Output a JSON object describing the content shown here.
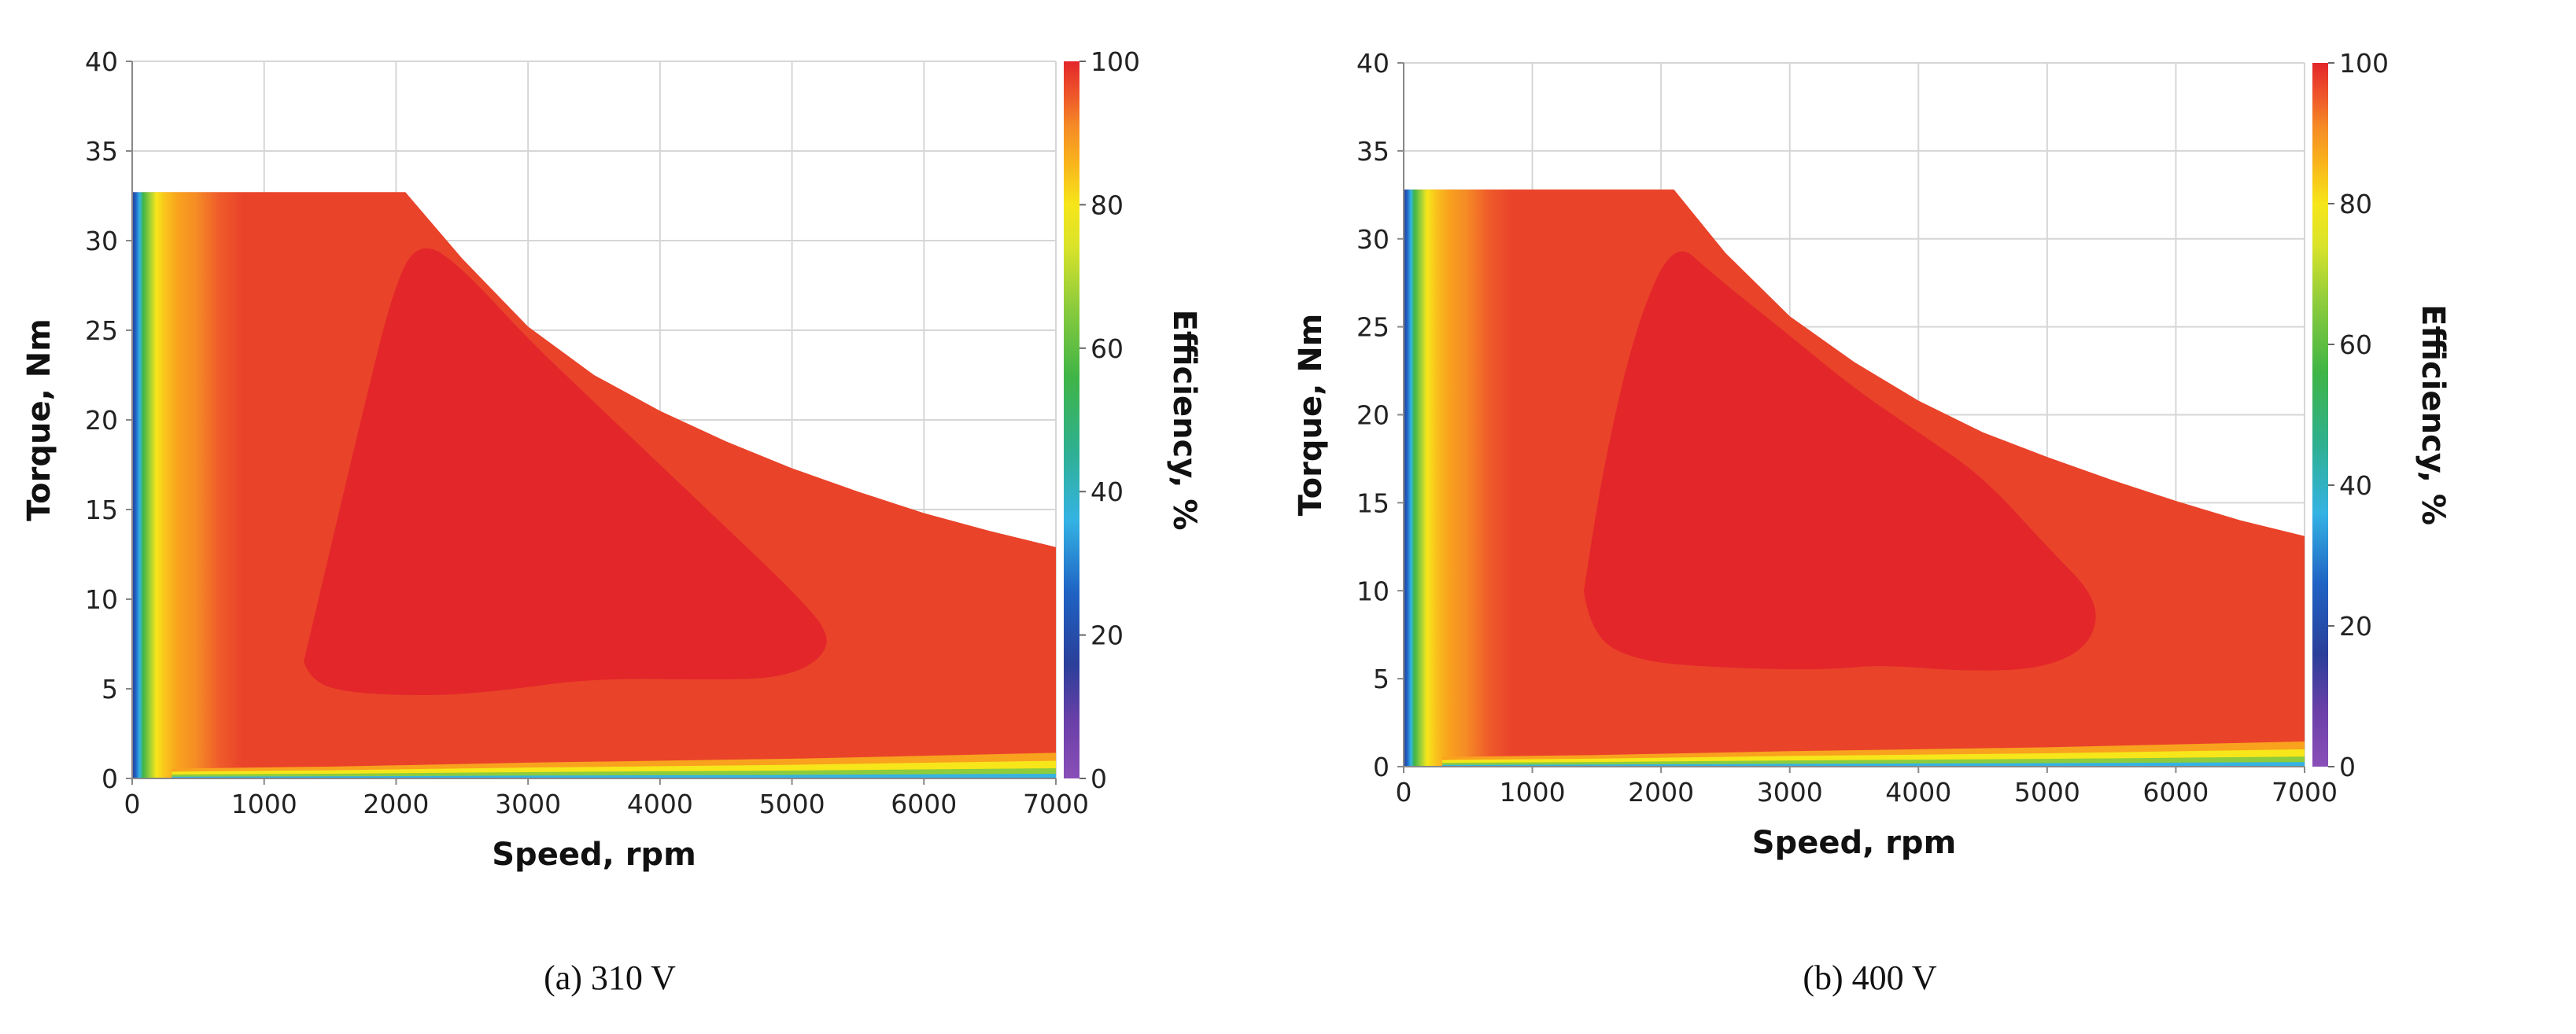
{
  "chart_data": [
    {
      "type": "heatmap",
      "caption": "(a) 310 V",
      "xlabel": "Speed, rpm",
      "ylabel": "Torque, Nm",
      "colorbar_label": "Efficiency, %",
      "xlim": [
        0,
        7000
      ],
      "ylim": [
        0,
        40
      ],
      "clim": [
        0,
        100
      ],
      "xticks": [
        "0",
        "1000",
        "2000",
        "3000",
        "4000",
        "5000",
        "6000",
        "7000"
      ],
      "yticks": [
        "0",
        "5",
        "10",
        "15",
        "20",
        "25",
        "30",
        "35",
        "40"
      ],
      "cticks": [
        "0",
        "20",
        "40",
        "60",
        "80",
        "100"
      ],
      "grid": true,
      "max_torque": 32.7,
      "envelope": [
        [
          2070,
          32.7
        ],
        [
          2500,
          29
        ],
        [
          3000,
          25.2
        ],
        [
          3500,
          22.5
        ],
        [
          4000,
          20.5
        ],
        [
          4500,
          18.8
        ],
        [
          5000,
          17.3
        ],
        [
          5500,
          16
        ],
        [
          6000,
          14.8
        ],
        [
          6500,
          13.8
        ],
        [
          7000,
          12.9
        ]
      ],
      "peak_region": [
        [
          1300,
          6.5
        ],
        [
          1700,
          19
        ],
        [
          2000,
          28
        ],
        [
          2200,
          30
        ],
        [
          2500,
          28.5
        ],
        [
          3000,
          24.5
        ],
        [
          3500,
          21
        ],
        [
          4000,
          17.5
        ],
        [
          4500,
          14
        ],
        [
          5000,
          10.5
        ],
        [
          5300,
          8
        ],
        [
          5200,
          6.5
        ],
        [
          4900,
          5.6
        ],
        [
          4400,
          5.5
        ],
        [
          3500,
          5.6
        ],
        [
          2700,
          4.8
        ],
        [
          2200,
          4.6
        ],
        [
          1600,
          4.8
        ],
        [
          1350,
          5.5
        ]
      ]
    },
    {
      "type": "heatmap",
      "caption": "(b) 400 V",
      "xlabel": "Speed, rpm",
      "ylabel": "Torque, Nm",
      "colorbar_label": "Efficiency, %",
      "xlim": [
        0,
        7000
      ],
      "ylim": [
        0,
        40
      ],
      "clim": [
        0,
        100
      ],
      "xticks": [
        "0",
        "1000",
        "2000",
        "3000",
        "4000",
        "5000",
        "6000",
        "7000"
      ],
      "yticks": [
        "0",
        "5",
        "10",
        "15",
        "20",
        "25",
        "30",
        "35",
        "40"
      ],
      "cticks": [
        "0",
        "20",
        "40",
        "60",
        "80",
        "100"
      ],
      "grid": true,
      "max_torque": 32.8,
      "envelope": [
        [
          2100,
          32.8
        ],
        [
          2500,
          29.2
        ],
        [
          3000,
          25.6
        ],
        [
          3500,
          23
        ],
        [
          4000,
          20.8
        ],
        [
          4500,
          19
        ],
        [
          5000,
          17.6
        ],
        [
          5500,
          16.3
        ],
        [
          6000,
          15.1
        ],
        [
          6500,
          14
        ],
        [
          7000,
          13.1
        ]
      ],
      "peak_region": [
        [
          1400,
          10
        ],
        [
          1550,
          17
        ],
        [
          1800,
          25
        ],
        [
          2100,
          30
        ],
        [
          2400,
          28
        ],
        [
          3000,
          24.5
        ],
        [
          3500,
          21.5
        ],
        [
          4000,
          19
        ],
        [
          4500,
          16.5
        ],
        [
          5000,
          12.5
        ],
        [
          5400,
          9.5
        ],
        [
          5350,
          7
        ],
        [
          5000,
          5.6
        ],
        [
          4400,
          5.4
        ],
        [
          3700,
          5.8
        ],
        [
          3300,
          5.5
        ],
        [
          2500,
          5.6
        ],
        [
          1800,
          6
        ],
        [
          1450,
          7.5
        ]
      ]
    }
  ]
}
